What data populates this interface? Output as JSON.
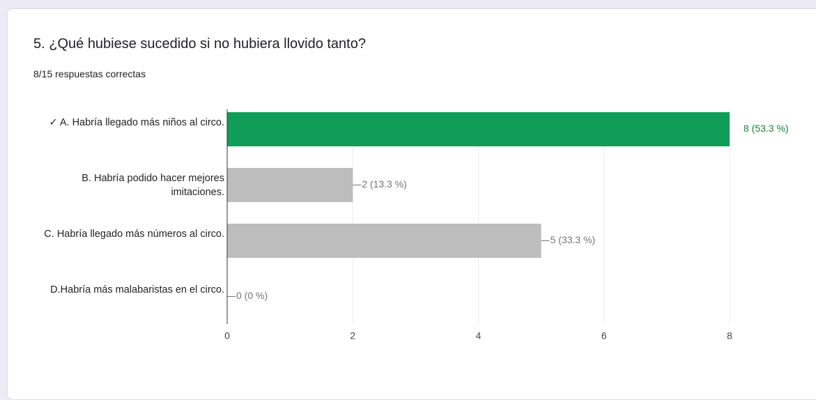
{
  "chart_data": {
    "type": "bar",
    "orientation": "horizontal",
    "title": "5. ¿Qué hubiese sucedido si no hubiera llovido tanto?",
    "subtitle": "8/15 respuestas correctas",
    "categories": [
      "✓ A. Habría llegado más niños al circo.",
      "B. Habría podido hacer mejores imitaciones.",
      "C. Habría llegado más números al circo.",
      "D.Habría más malabaristas en el circo."
    ],
    "values": [
      8,
      2,
      5,
      0
    ],
    "value_labels": [
      "8 (53.3 %)",
      "2 (13.3 %)",
      "5 (33.3 %)",
      "0 (0 %)"
    ],
    "correct": [
      true,
      false,
      false,
      false
    ],
    "color": "#bdbdbd",
    "correct_color": "#0f9d58",
    "label_color": "#757575",
    "correct_label_color": "#188038",
    "xlim": [
      0,
      8
    ],
    "xticks": [
      0,
      2,
      4,
      6,
      8
    ],
    "grid": true
  }
}
